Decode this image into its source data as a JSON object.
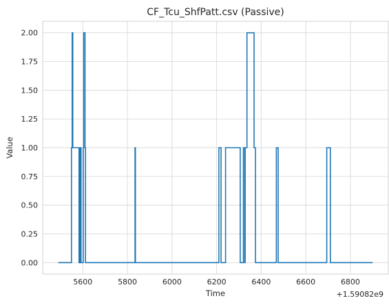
{
  "chart_data": {
    "type": "line",
    "title": "CF_Tcu_ShfPatt.csv (Passive)",
    "xlabel": "Time",
    "ylabel": "Value",
    "x_offset_label": "+1.59082e9",
    "xlim": [
      5420,
      6970
    ],
    "ylim": [
      -0.1,
      2.1
    ],
    "x_ticks": [
      5600,
      5800,
      6000,
      6200,
      6400,
      6600,
      6800
    ],
    "x_tick_labels": [
      "5600",
      "5800",
      "6000",
      "6200",
      "6400",
      "6600",
      "6800"
    ],
    "y_ticks": [
      0,
      0.25,
      0.5,
      0.75,
      1.0,
      1.25,
      1.5,
      1.75,
      2.0
    ],
    "y_tick_labels": [
      "0.00",
      "0.25",
      "0.50",
      "0.75",
      "1.00",
      "1.25",
      "1.50",
      "1.75",
      "2.00"
    ],
    "grid": true,
    "line_style": "step",
    "series": [
      {
        "color": "#1f77b4",
        "x": [
          5490,
          5548,
          5549,
          5552,
          5555,
          5583,
          5587,
          5592,
          5602,
          5604,
          5610,
          5612,
          5832,
          5834,
          5836,
          6208,
          6210,
          6218,
          6220,
          6236,
          6240,
          6302,
          6306,
          6318,
          6320,
          6326,
          6328,
          6334,
          6336,
          6366,
          6368,
          6372,
          6374,
          6466,
          6468,
          6474,
          6476,
          6690,
          6694,
          6706,
          6710,
          6900
        ],
        "y": [
          0,
          0,
          1,
          2,
          1,
          0,
          1,
          0,
          1,
          2,
          1,
          0,
          0,
          1,
          0,
          0,
          1,
          1,
          0,
          0,
          1,
          1,
          0,
          0,
          1,
          0,
          1,
          1,
          2,
          2,
          1,
          1,
          0,
          0,
          1,
          1,
          0,
          0,
          1,
          1,
          0,
          0
        ]
      }
    ]
  }
}
